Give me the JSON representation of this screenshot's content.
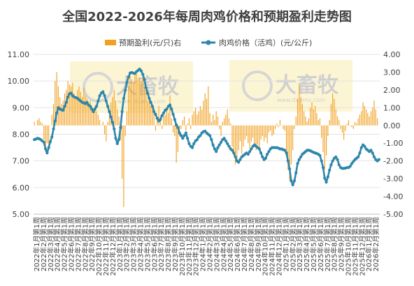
{
  "chart_data": {
    "type": "bar+line",
    "title": "全国2022-2026年每周肉鸡价格和预期盈利走势图",
    "legend_position": "top",
    "watermark": {
      "text": "大畜牧",
      "sub": "www.dxumu.com"
    },
    "y_left": {
      "ylim": [
        5,
        11
      ],
      "ticks": [
        "5.00",
        "6.00",
        "7.00",
        "8.00",
        "9.00",
        "10.00",
        "11.00"
      ]
    },
    "y_right": {
      "ylim": [
        -5,
        4
      ],
      "ticks": [
        "-5.00",
        "-4.00",
        "-3.00",
        "-2.00",
        "-1.00",
        "0.00",
        "1.00",
        "2.00",
        "3.00",
        "4.00"
      ]
    },
    "x_tick_labels": [
      "2022年1月第1周",
      "2022年2月第1周",
      "2022年3月第1周",
      "2022年4月第1周",
      "2022年5月第1周",
      "2022年6月第1周",
      "2022年7月第1周",
      "2022年8月第1周",
      "2022年9月第1周",
      "2022年10月第1周",
      "2022年11月第1周",
      "2022年12月第1周",
      "2023年1月第1周",
      "2023年2月第1周",
      "2023年3月第1周",
      "2023年4月第1周",
      "2023年5月第1周",
      "2023年6月第1周",
      "2023年7月第1周",
      "2023年8月第1周",
      "2023年9月第1周",
      "2023年10月第1周",
      "2023年11月第1周",
      "2023年12月第1周",
      "2024年1月第1周",
      "2024年2月第1周",
      "2024年3月第1周",
      "2024年4月第1周",
      "2024年5月第1周",
      "2024年6月第1周",
      "2024年7月第1周",
      "2024年8月第1周",
      "2024年9月第1周",
      "2024年10月第1周",
      "2024年11月第1周",
      "2024年12月第1周",
      "2025年1月第1周",
      "2025年2月第1周",
      "2025年3月第1周",
      "2025年4月第1周",
      "2025年5月第1周",
      "2025年6月第1周",
      "2025年7月第1周",
      "2025年8月第1周",
      "2025年9月第1周",
      "2025年10月第1周",
      "2025年11月第1周",
      "2025年12月第1周",
      "2026年1月第1周",
      "2026年2月第1周"
    ],
    "series": [
      {
        "name": "预期盈利(元/只)右",
        "type": "bar",
        "axis": "right",
        "color": "#F2A020",
        "values": [
          0.2,
          0.0,
          0.3,
          0.4,
          0.2,
          0.1,
          -0.8,
          -1.5,
          -1.0,
          -1.1,
          0.0,
          0.6,
          1.2,
          2.5,
          3.0,
          2.2,
          1.6,
          1.2,
          1.4,
          1.8,
          2.0,
          2.5,
          2.3,
          2.2,
          2.4,
          1.8,
          1.6,
          2.0,
          2.2,
          1.9,
          1.6,
          2.1,
          1.7,
          1.5,
          1.3,
          1.4,
          1.1,
          0.9,
          1.1,
          0.8,
          0.6,
          0.3,
          0.0,
          0.2,
          -0.5,
          -0.9,
          0.2,
          0.6,
          1.3,
          1.6,
          2.0,
          1.4,
          0.9,
          0.5,
          -0.8,
          -3.0,
          -4.6,
          -0.6,
          0.8,
          2.2,
          3.0,
          2.6,
          2.4,
          2.8,
          2.9,
          2.6,
          2.7,
          2.5,
          2.8,
          2.2,
          2.0,
          1.4,
          1.7,
          1.1,
          0.9,
          1.0,
          -0.3,
          0.5,
          1.1,
          0.5,
          -0.2,
          0.8,
          0.6,
          1.0,
          0.7,
          1.7,
          0.4,
          -0.4,
          -0.6,
          -2.1,
          -1.5,
          -0.6,
          -0.2,
          0.3,
          0.5,
          -0.3,
          0.1,
          0.4,
          -0.2,
          0.6,
          0.8,
          1.0,
          0.6,
          0.8,
          1.1,
          0.9,
          1.4,
          1.8,
          1.5,
          2.2,
          0.7,
          0.2,
          0.6,
          0.3,
          0.8,
          0.5,
          -0.2,
          -0.6,
          0.2,
          0.4,
          0.6,
          0.9,
          0.4,
          0.1,
          -1.2,
          -1.7,
          -2.2,
          -1.9,
          -1.4,
          -0.9,
          -1.6,
          -1.2,
          -0.8,
          -0.6,
          -1.0,
          -1.3,
          -0.9,
          -0.7,
          -1.2,
          -1.4,
          -1.1,
          -1.3,
          -0.8,
          -0.6,
          -0.9,
          -0.7,
          -1.0,
          -0.4,
          -0.3,
          -0.6,
          -0.5,
          -0.2,
          0.1,
          -0.1,
          0.3,
          0.0,
          -0.2,
          -0.3,
          -1.6,
          -2.5,
          -3.1,
          -2.2,
          -1.4,
          -0.2,
          0.5,
          1.5,
          2.3,
          1.6,
          1.2,
          0.8,
          0.5,
          0.2,
          0.4,
          1.0,
          1.3,
          0.9,
          1.1,
          0.7,
          0.3,
          0.4,
          -0.7,
          -1.5,
          -2.5,
          -1.7,
          -0.6,
          0.3,
          1.2,
          1.8,
          1.5,
          0.9,
          0.5,
          0.3,
          -0.2,
          -0.4,
          -0.8,
          -0.3,
          0.1,
          0.3,
          0.0,
          -0.1,
          -0.2,
          0.2,
          0.1,
          0.4,
          0.6,
          0.8,
          1.3,
          1.1,
          0.9,
          0.7,
          0.5,
          0.8,
          1.0,
          1.4,
          0.9,
          0.4
        ]
      },
      {
        "name": "肉鸡价格（活鸡）(元/公斤)",
        "type": "line",
        "axis": "left",
        "color": "#2E86AB",
        "values": [
          7.8,
          7.82,
          7.85,
          7.83,
          7.8,
          7.75,
          7.7,
          7.45,
          7.3,
          7.5,
          7.72,
          7.9,
          8.2,
          8.5,
          8.8,
          9.0,
          8.95,
          8.92,
          8.9,
          9.05,
          9.2,
          9.4,
          9.52,
          9.55,
          9.45,
          9.4,
          9.38,
          9.35,
          9.3,
          9.25,
          9.2,
          9.18,
          9.15,
          9.2,
          9.1,
          9.05,
          8.95,
          8.85,
          8.95,
          9.05,
          9.25,
          9.45,
          9.55,
          9.6,
          9.45,
          9.25,
          9.05,
          8.85,
          8.65,
          8.45,
          8.2,
          7.85,
          7.65,
          7.8,
          8.25,
          8.85,
          9.35,
          9.65,
          9.95,
          10.15,
          10.3,
          10.32,
          10.3,
          10.28,
          10.35,
          10.4,
          10.45,
          10.38,
          10.25,
          10.05,
          9.75,
          9.55,
          9.35,
          9.2,
          9.05,
          8.85,
          8.75,
          8.6,
          8.5,
          8.55,
          8.7,
          8.8,
          8.9,
          8.95,
          9.05,
          9.1,
          8.95,
          8.75,
          8.55,
          8.35,
          8.25,
          8.05,
          7.95,
          7.85,
          7.95,
          8.05,
          7.85,
          7.65,
          7.55,
          7.5,
          7.65,
          7.75,
          7.8,
          7.9,
          7.95,
          8.05,
          8.1,
          8.12,
          8.05,
          8.0,
          7.95,
          7.8,
          7.6,
          7.45,
          7.35,
          7.5,
          7.6,
          7.7,
          7.8,
          7.85,
          7.75,
          7.65,
          7.55,
          7.45,
          7.4,
          7.3,
          7.15,
          7.0,
          6.95,
          7.05,
          7.15,
          7.2,
          7.25,
          7.3,
          7.25,
          7.35,
          7.45,
          7.55,
          7.6,
          7.55,
          7.5,
          7.45,
          7.3,
          7.15,
          7.05,
          7.1,
          7.25,
          7.35,
          7.45,
          7.5,
          7.5,
          7.5,
          7.5,
          7.48,
          7.45,
          7.45,
          7.42,
          7.4,
          7.3,
          7.0,
          6.7,
          6.25,
          6.1,
          6.25,
          6.55,
          6.9,
          7.05,
          7.15,
          7.25,
          7.3,
          7.35,
          7.4,
          7.4,
          7.38,
          7.35,
          7.32,
          7.3,
          7.28,
          7.25,
          7.2,
          7.0,
          6.75,
          6.35,
          6.2,
          6.4,
          6.65,
          6.85,
          7.0,
          7.1,
          7.15,
          7.05,
          6.85,
          6.75,
          6.72,
          6.72,
          6.73,
          6.75,
          6.75,
          6.8,
          6.9,
          6.98,
          7.05,
          7.1,
          7.15,
          7.3,
          7.5,
          7.6,
          7.55,
          7.45,
          7.4,
          7.35,
          7.4,
          7.3,
          7.15,
          7.05,
          7.0,
          7.05
        ]
      }
    ]
  }
}
